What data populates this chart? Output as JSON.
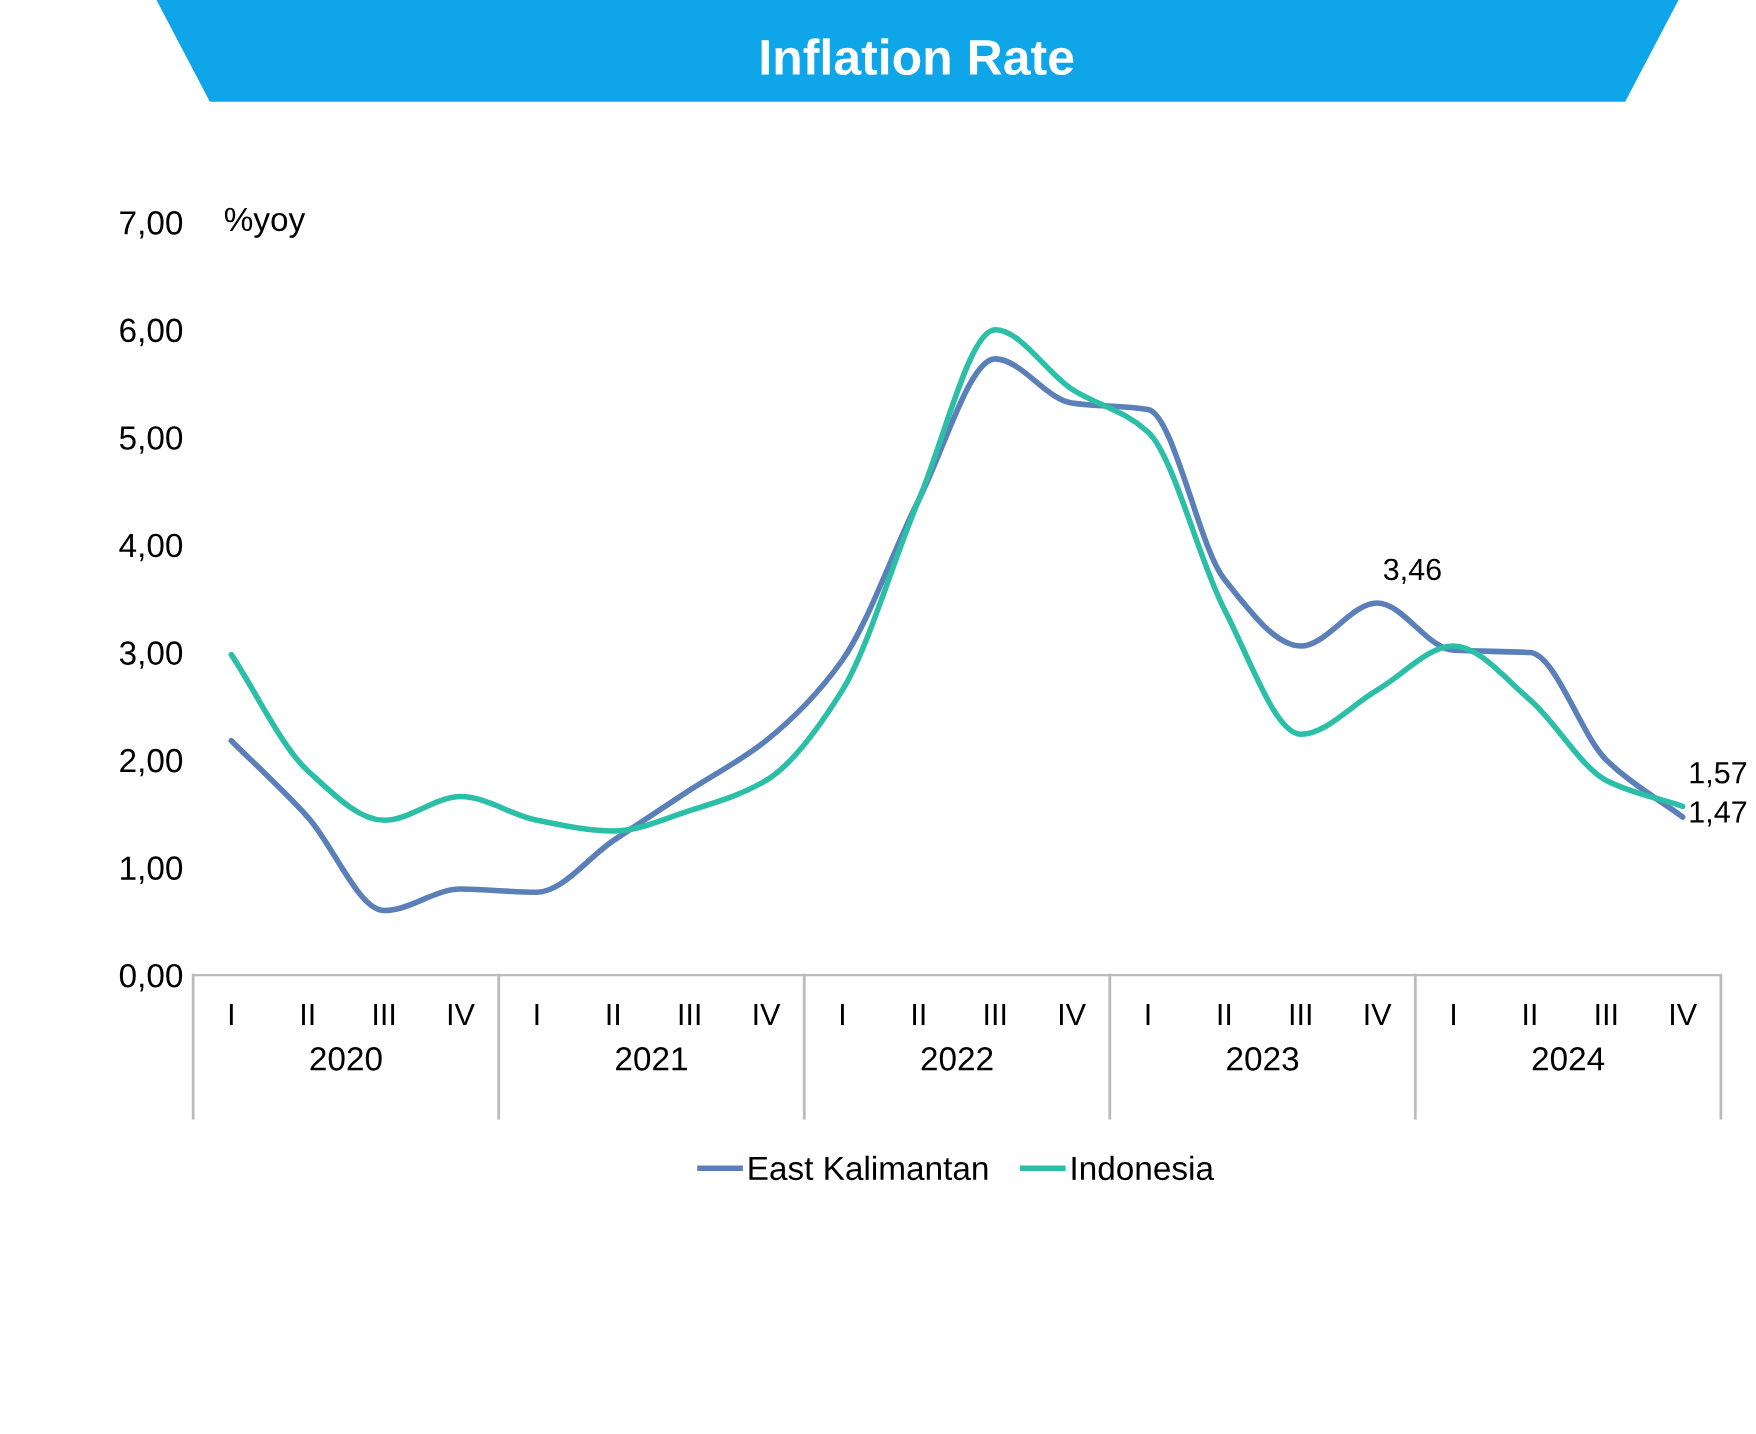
{
  "chart_data": {
    "type": "line",
    "title": "Inflation Rate",
    "ylabel": "%yoy",
    "categories": [
      "I",
      "II",
      "III",
      "IV",
      "I",
      "II",
      "III",
      "IV",
      "I",
      "II",
      "III",
      "IV",
      "I",
      "II",
      "III",
      "IV",
      "I",
      "II",
      "III",
      "IV"
    ],
    "annotations": [
      "2020",
      "2021",
      "2022",
      "2023",
      "2024"
    ],
    "series": [
      {
        "name": "East Kalimantan",
        "color": "#5b7fb8",
        "values": [
          2.18,
          1.47,
          0.6,
          0.8,
          0.77,
          1.25,
          1.72,
          2.18,
          2.93,
          4.42,
          5.73,
          5.32,
          5.26,
          3.68,
          3.06,
          3.46,
          3.02,
          3.0,
          2.0,
          1.47
        ],
        "value_labels": [
          null,
          null,
          null,
          null,
          null,
          null,
          null,
          null,
          null,
          null,
          null,
          null,
          null,
          null,
          null,
          "3,46",
          null,
          null,
          null,
          "1,47"
        ]
      },
      {
        "name": "Indonesia",
        "color": "#2bbfa8",
        "values": [
          2.98,
          1.9,
          1.44,
          1.66,
          1.44,
          1.34,
          1.53,
          1.81,
          2.65,
          4.42,
          6.0,
          5.45,
          5.05,
          3.4,
          2.24,
          2.65,
          3.06,
          2.56,
          1.81,
          1.57
        ],
        "value_labels": [
          null,
          null,
          null,
          null,
          null,
          null,
          null,
          null,
          null,
          null,
          null,
          null,
          null,
          null,
          null,
          null,
          null,
          null,
          null,
          "1,57"
        ]
      }
    ],
    "ylim": [
      0,
      7
    ],
    "yticks": [
      {
        "value": 0,
        "label": "0,00"
      },
      {
        "value": 1,
        "label": "1,00"
      },
      {
        "value": 2,
        "label": "2,00"
      },
      {
        "value": 3,
        "label": "3,00"
      },
      {
        "value": 4,
        "label": "4,00"
      },
      {
        "value": 5,
        "label": "5,00"
      },
      {
        "value": 6,
        "label": "6,00"
      },
      {
        "value": 7,
        "label": "7,00"
      }
    ],
    "grid": false,
    "legend": "bottom",
    "marker": "none",
    "line_style": "solid"
  }
}
